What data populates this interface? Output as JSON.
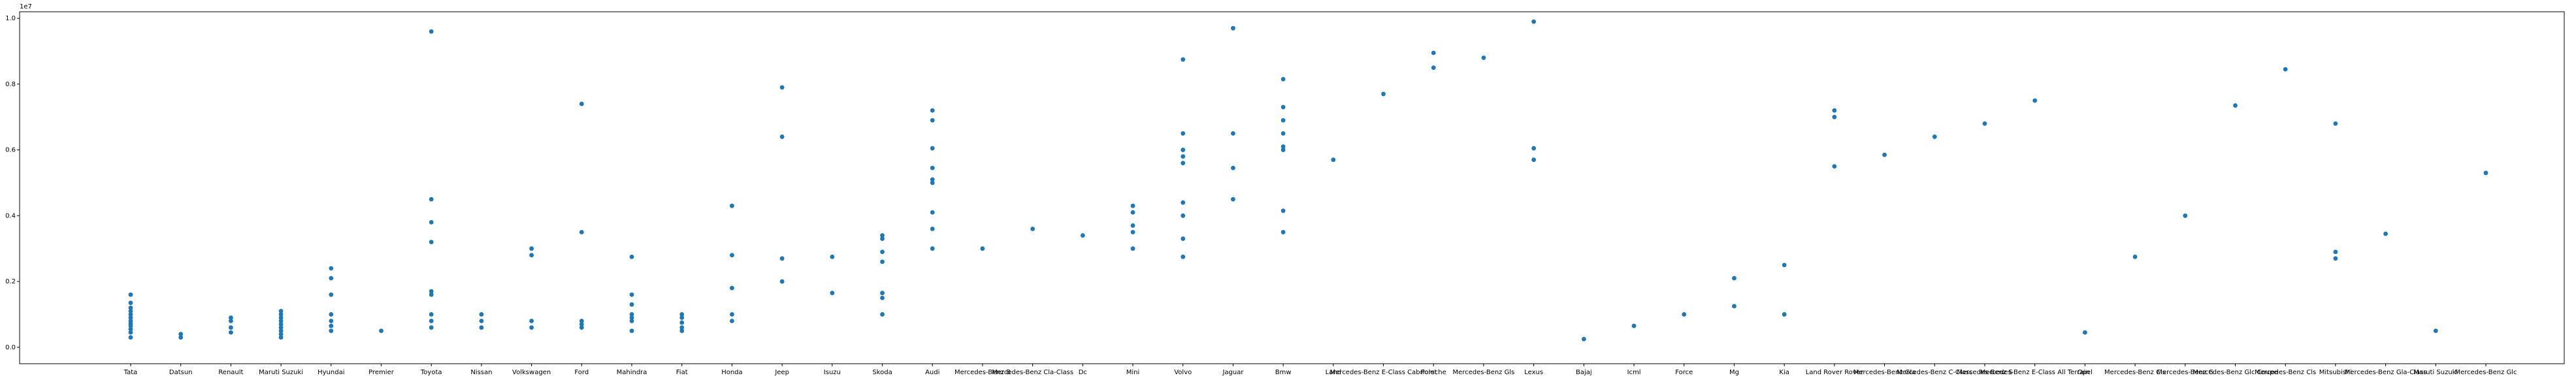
{
  "chart_data": {
    "type": "scatter",
    "title": "",
    "xlabel": "",
    "ylabel": "",
    "y_offset_text": "1e7",
    "marker_color": "#1f77b4",
    "grid": false,
    "legend": "none",
    "ylim": [
      -0.05,
      1.02
    ],
    "y_ticks": [
      {
        "value": 0.0,
        "label": "0.0"
      },
      {
        "value": 0.2,
        "label": "0.2"
      },
      {
        "value": 0.4,
        "label": "0.4"
      },
      {
        "value": 0.6,
        "label": "0.6"
      },
      {
        "value": 0.8,
        "label": "0.8"
      },
      {
        "value": 1.0,
        "label": "1.0"
      }
    ],
    "categories": [
      "Tata",
      "Datsun",
      "Renault",
      "Maruti Suzuki",
      "Hyundai",
      "Premier",
      "Toyota",
      "Nissan",
      "Volkswagen",
      "Ford",
      "Mahindra",
      "Fiat",
      "Honda",
      "Jeep",
      "Isuzu",
      "Skoda",
      "Audi",
      "Mercedes-Benz B",
      "Mercedes-Benz Cla-Class",
      "Dc",
      "Mini",
      "Volvo",
      "Jaguar",
      "Bmw",
      "Land",
      "Mercedes-Benz E-Class Cabriolet",
      "Porsche",
      "Mercedes-Benz Gls",
      "Lexus",
      "Bajaj",
      "Icml",
      "Force",
      "Mg",
      "Kia",
      "Land Rover Rover",
      "Mercedes-Benz Gla",
      "Mercedes-Benz C-Class",
      "Mercedes-Benz S",
      "Mercedes-Benz E-Class All Terrain",
      "Opel",
      "Mercedes-Benz Cls",
      "Mercedes-Benz G",
      "Mercedes-Benz Glc Coupe",
      "Mercedes-Benz Cls",
      "Mitsubishi",
      "Mercedes-Benz Gla-Class",
      "Maruti Suzuki",
      "Mercedes-Benz Glc"
    ],
    "points": [
      {
        "x": "Tata",
        "y": [
          0.03,
          0.045,
          0.055,
          0.065,
          0.072,
          0.08,
          0.09,
          0.1,
          0.11,
          0.12,
          0.135,
          0.16
        ]
      },
      {
        "x": "Datsun",
        "y": [
          0.03,
          0.04
        ]
      },
      {
        "x": "Renault",
        "y": [
          0.045,
          0.06,
          0.08,
          0.09
        ]
      },
      {
        "x": "Maruti Suzuki",
        "y": [
          0.03,
          0.04,
          0.05,
          0.06,
          0.07,
          0.08,
          0.09,
          0.1,
          0.11
        ]
      },
      {
        "x": "Hyundai",
        "y": [
          0.05,
          0.065,
          0.08,
          0.1,
          0.16,
          0.21,
          0.24
        ]
      },
      {
        "x": "Premier",
        "y": [
          0.05
        ]
      },
      {
        "x": "Toyota",
        "y": [
          0.06,
          0.08,
          0.1,
          0.16,
          0.17,
          0.32,
          0.38,
          0.45,
          0.96
        ]
      },
      {
        "x": "Nissan",
        "y": [
          0.06,
          0.08,
          0.1
        ]
      },
      {
        "x": "Volkswagen",
        "y": [
          0.06,
          0.08,
          0.28,
          0.3
        ]
      },
      {
        "x": "Ford",
        "y": [
          0.06,
          0.07,
          0.08,
          0.35,
          0.74
        ]
      },
      {
        "x": "Mahindra",
        "y": [
          0.05,
          0.08,
          0.09,
          0.1,
          0.13,
          0.16,
          0.275
        ]
      },
      {
        "x": "Fiat",
        "y": [
          0.05,
          0.06,
          0.075,
          0.09,
          0.1
        ]
      },
      {
        "x": "Honda",
        "y": [
          0.08,
          0.1,
          0.18,
          0.28,
          0.43
        ]
      },
      {
        "x": "Jeep",
        "y": [
          0.2,
          0.27,
          0.64,
          0.79
        ]
      },
      {
        "x": "Isuzu",
        "y": [
          0.165,
          0.275
        ]
      },
      {
        "x": "Skoda",
        "y": [
          0.1,
          0.15,
          0.165,
          0.26,
          0.29,
          0.33,
          0.34
        ]
      },
      {
        "x": "Audi",
        "y": [
          0.3,
          0.36,
          0.41,
          0.5,
          0.51,
          0.545,
          0.605,
          0.69,
          0.72
        ]
      },
      {
        "x": "Mercedes-Benz B",
        "y": [
          0.3
        ]
      },
      {
        "x": "Mercedes-Benz Cla-Class",
        "y": [
          0.36
        ]
      },
      {
        "x": "Dc",
        "y": [
          0.34
        ]
      },
      {
        "x": "Mini",
        "y": [
          0.3,
          0.35,
          0.37,
          0.41,
          0.43
        ]
      },
      {
        "x": "Volvo",
        "y": [
          0.275,
          0.33,
          0.4,
          0.44,
          0.56,
          0.58,
          0.6,
          0.65,
          0.875
        ]
      },
      {
        "x": "Jaguar",
        "y": [
          0.45,
          0.545,
          0.65,
          0.97
        ]
      },
      {
        "x": "Bmw",
        "y": [
          0.35,
          0.415,
          0.6,
          0.61,
          0.65,
          0.69,
          0.73,
          0.815
        ]
      },
      {
        "x": "Land",
        "y": [
          0.57
        ]
      },
      {
        "x": "Mercedes-Benz E-Class Cabriolet",
        "y": [
          0.77
        ]
      },
      {
        "x": "Porsche",
        "y": [
          0.85,
          0.895
        ]
      },
      {
        "x": "Mercedes-Benz Gls",
        "y": [
          0.88
        ]
      },
      {
        "x": "Lexus",
        "y": [
          0.57,
          0.605,
          0.99
        ]
      },
      {
        "x": "Bajaj",
        "y": [
          0.025
        ]
      },
      {
        "x": "Icml",
        "y": [
          0.065
        ]
      },
      {
        "x": "Force",
        "y": [
          0.1
        ]
      },
      {
        "x": "Mg",
        "y": [
          0.125,
          0.21
        ]
      },
      {
        "x": "Kia",
        "y": [
          0.1,
          0.25
        ]
      },
      {
        "x": "Land Rover Rover",
        "y": [
          0.55,
          0.7,
          0.72
        ]
      },
      {
        "x": "Mercedes-Benz Gla",
        "y": [
          0.585
        ]
      },
      {
        "x": "Mercedes-Benz C-Class",
        "y": [
          0.64
        ]
      },
      {
        "x": "Mercedes-Benz S",
        "y": [
          0.68
        ]
      },
      {
        "x": "Mercedes-Benz E-Class All Terrain",
        "y": [
          0.75
        ]
      },
      {
        "x": "Opel",
        "y": [
          0.045
        ]
      },
      {
        "x": "Mercedes-Benz Cls",
        "y": [
          0.275
        ]
      },
      {
        "x": "Mercedes-Benz G",
        "y": [
          0.4
        ]
      },
      {
        "x": "Mercedes-Benz Glc Coupe",
        "y": [
          0.735
        ]
      },
      {
        "x": "Mercedes-Benz Cls",
        "y": [
          0.845
        ]
      },
      {
        "x": "Mitsubishi",
        "y": [
          0.27,
          0.29,
          0.68
        ]
      },
      {
        "x": "Mercedes-Benz Gla-Class",
        "y": [
          0.345
        ]
      },
      {
        "x": "Maruti Suzuki",
        "y": [
          0.05
        ]
      },
      {
        "x": "Mercedes-Benz Glc",
        "y": [
          0.53
        ]
      }
    ]
  }
}
